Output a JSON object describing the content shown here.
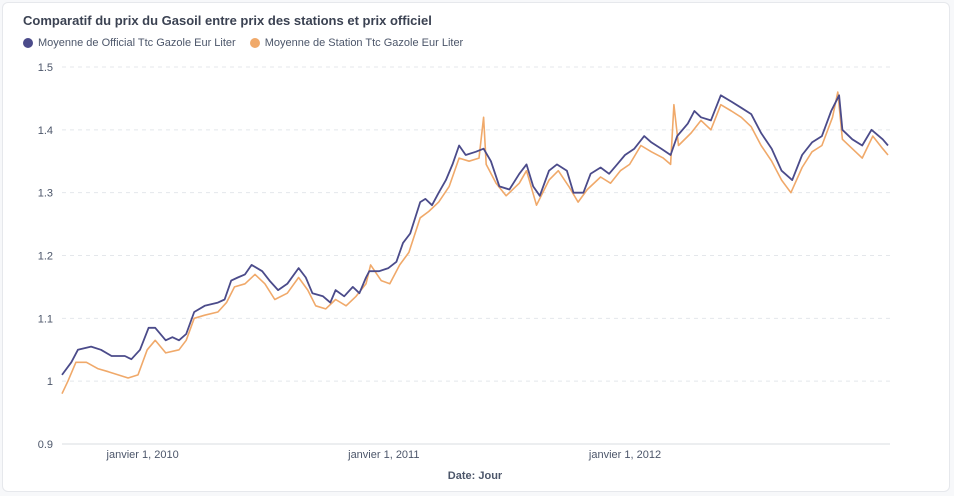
{
  "colors": {
    "official": "#4b4b8a",
    "station": "#f0a96a"
  },
  "chart_data": {
    "type": "line",
    "title": "Comparatif du prix du Gasoil entre prix des stations et prix officiel",
    "xlabel": "Date: Jour",
    "ylabel": "",
    "ylim": [
      0.9,
      1.5
    ],
    "y_ticks": [
      "0.9",
      "1",
      "1.1",
      "1.2",
      "1.3",
      "1.4",
      "1.5"
    ],
    "x_ticks": [
      {
        "date": "2010-01-01",
        "label": "janvier 1, 2010"
      },
      {
        "date": "2011-01-01",
        "label": "janvier 1, 2011"
      },
      {
        "date": "2012-01-01",
        "label": "janvier 1, 2012"
      }
    ],
    "grid": true,
    "legend_position": "top-left",
    "series": [
      {
        "name": "Moyenne de Official Ttc Gazole Eur Liter",
        "color": "#4b4b8a",
        "points": [
          [
            "2009-09-01",
            1.01
          ],
          [
            "2009-09-15",
            1.03
          ],
          [
            "2009-09-25",
            1.05
          ],
          [
            "2009-10-15",
            1.055
          ],
          [
            "2009-10-30",
            1.05
          ],
          [
            "2009-11-15",
            1.04
          ],
          [
            "2009-12-05",
            1.04
          ],
          [
            "2009-12-15",
            1.035
          ],
          [
            "2009-12-28",
            1.05
          ],
          [
            "2010-01-10",
            1.085
          ],
          [
            "2010-01-20",
            1.085
          ],
          [
            "2010-02-05",
            1.065
          ],
          [
            "2010-02-15",
            1.07
          ],
          [
            "2010-02-25",
            1.065
          ],
          [
            "2010-03-08",
            1.075
          ],
          [
            "2010-03-20",
            1.11
          ],
          [
            "2010-04-05",
            1.12
          ],
          [
            "2010-04-25",
            1.125
          ],
          [
            "2010-05-05",
            1.13
          ],
          [
            "2010-05-15",
            1.16
          ],
          [
            "2010-05-25",
            1.165
          ],
          [
            "2010-06-05",
            1.17
          ],
          [
            "2010-06-15",
            1.185
          ],
          [
            "2010-07-01",
            1.175
          ],
          [
            "2010-07-12",
            1.16
          ],
          [
            "2010-07-25",
            1.145
          ],
          [
            "2010-08-08",
            1.155
          ],
          [
            "2010-08-25",
            1.18
          ],
          [
            "2010-09-05",
            1.165
          ],
          [
            "2010-09-15",
            1.14
          ],
          [
            "2010-10-01",
            1.135
          ],
          [
            "2010-10-12",
            1.125
          ],
          [
            "2010-10-20",
            1.145
          ],
          [
            "2010-11-02",
            1.135
          ],
          [
            "2010-11-15",
            1.15
          ],
          [
            "2010-11-25",
            1.14
          ],
          [
            "2010-12-05",
            1.165
          ],
          [
            "2010-12-10",
            1.175
          ],
          [
            "2010-12-25",
            1.175
          ],
          [
            "2011-01-08",
            1.18
          ],
          [
            "2011-01-20",
            1.19
          ],
          [
            "2011-01-30",
            1.22
          ],
          [
            "2011-02-10",
            1.235
          ],
          [
            "2011-02-25",
            1.285
          ],
          [
            "2011-03-05",
            1.29
          ],
          [
            "2011-03-15",
            1.28
          ],
          [
            "2011-03-25",
            1.3
          ],
          [
            "2011-04-05",
            1.32
          ],
          [
            "2011-04-15",
            1.345
          ],
          [
            "2011-04-25",
            1.375
          ],
          [
            "2011-05-05",
            1.36
          ],
          [
            "2011-05-20",
            1.365
          ],
          [
            "2011-06-01",
            1.37
          ],
          [
            "2011-06-12",
            1.35
          ],
          [
            "2011-06-25",
            1.31
          ],
          [
            "2011-07-10",
            1.305
          ],
          [
            "2011-07-25",
            1.33
          ],
          [
            "2011-08-05",
            1.345
          ],
          [
            "2011-08-15",
            1.31
          ],
          [
            "2011-08-25",
            1.295
          ],
          [
            "2011-09-08",
            1.335
          ],
          [
            "2011-09-20",
            1.345
          ],
          [
            "2011-10-05",
            1.335
          ],
          [
            "2011-10-15",
            1.3
          ],
          [
            "2011-10-30",
            1.3
          ],
          [
            "2011-11-10",
            1.33
          ],
          [
            "2011-11-25",
            1.34
          ],
          [
            "2011-12-08",
            1.33
          ],
          [
            "2011-12-20",
            1.345
          ],
          [
            "2012-01-01",
            1.36
          ],
          [
            "2012-01-15",
            1.37
          ],
          [
            "2012-01-30",
            1.39
          ],
          [
            "2012-02-10",
            1.38
          ],
          [
            "2012-02-25",
            1.37
          ],
          [
            "2012-03-10",
            1.36
          ],
          [
            "2012-03-20",
            1.39
          ],
          [
            "2012-04-05",
            1.41
          ],
          [
            "2012-04-15",
            1.43
          ],
          [
            "2012-04-25",
            1.42
          ],
          [
            "2012-05-10",
            1.415
          ],
          [
            "2012-05-25",
            1.455
          ],
          [
            "2012-06-10",
            1.445
          ],
          [
            "2012-06-25",
            1.435
          ],
          [
            "2012-07-10",
            1.425
          ],
          [
            "2012-07-25",
            1.395
          ],
          [
            "2012-08-10",
            1.37
          ],
          [
            "2012-08-25",
            1.335
          ],
          [
            "2012-09-10",
            1.32
          ],
          [
            "2012-09-25",
            1.36
          ],
          [
            "2012-10-10",
            1.38
          ],
          [
            "2012-10-25",
            1.39
          ],
          [
            "2012-11-08",
            1.43
          ],
          [
            "2012-11-20",
            1.455
          ],
          [
            "2012-11-25",
            1.4
          ],
          [
            "2012-12-10",
            1.385
          ],
          [
            "2012-12-25",
            1.375
          ],
          [
            "2013-01-08",
            1.4
          ],
          [
            "2013-01-25",
            1.385
          ],
          [
            "2013-02-02",
            1.375
          ]
        ]
      },
      {
        "name": "Moyenne de Station Ttc Gazole Eur Liter",
        "color": "#f0a96a",
        "points": [
          [
            "2009-09-01",
            0.98
          ],
          [
            "2009-09-10",
            1.0
          ],
          [
            "2009-09-22",
            1.03
          ],
          [
            "2009-10-08",
            1.03
          ],
          [
            "2009-10-25",
            1.02
          ],
          [
            "2009-11-10",
            1.015
          ],
          [
            "2009-11-25",
            1.01
          ],
          [
            "2009-12-10",
            1.005
          ],
          [
            "2009-12-25",
            1.01
          ],
          [
            "2010-01-08",
            1.05
          ],
          [
            "2010-01-20",
            1.065
          ],
          [
            "2010-02-05",
            1.045
          ],
          [
            "2010-02-25",
            1.05
          ],
          [
            "2010-03-08",
            1.065
          ],
          [
            "2010-03-20",
            1.1
          ],
          [
            "2010-04-05",
            1.105
          ],
          [
            "2010-04-25",
            1.11
          ],
          [
            "2010-05-08",
            1.125
          ],
          [
            "2010-05-20",
            1.15
          ],
          [
            "2010-06-05",
            1.155
          ],
          [
            "2010-06-20",
            1.17
          ],
          [
            "2010-07-05",
            1.155
          ],
          [
            "2010-07-20",
            1.13
          ],
          [
            "2010-08-08",
            1.14
          ],
          [
            "2010-08-25",
            1.165
          ],
          [
            "2010-09-08",
            1.145
          ],
          [
            "2010-09-20",
            1.12
          ],
          [
            "2010-10-05",
            1.115
          ],
          [
            "2010-10-20",
            1.13
          ],
          [
            "2010-11-05",
            1.12
          ],
          [
            "2010-11-20",
            1.135
          ],
          [
            "2010-12-05",
            1.155
          ],
          [
            "2010-12-12",
            1.185
          ],
          [
            "2010-12-28",
            1.16
          ],
          [
            "2011-01-10",
            1.155
          ],
          [
            "2011-01-25",
            1.185
          ],
          [
            "2011-02-08",
            1.205
          ],
          [
            "2011-02-25",
            1.26
          ],
          [
            "2011-03-10",
            1.27
          ],
          [
            "2011-03-25",
            1.285
          ],
          [
            "2011-04-10",
            1.31
          ],
          [
            "2011-04-25",
            1.355
          ],
          [
            "2011-05-10",
            1.35
          ],
          [
            "2011-05-25",
            1.355
          ],
          [
            "2011-06-01",
            1.42
          ],
          [
            "2011-06-05",
            1.345
          ],
          [
            "2011-06-20",
            1.315
          ],
          [
            "2011-07-05",
            1.295
          ],
          [
            "2011-07-25",
            1.315
          ],
          [
            "2011-08-05",
            1.335
          ],
          [
            "2011-08-20",
            1.28
          ],
          [
            "2011-09-08",
            1.32
          ],
          [
            "2011-09-22",
            1.335
          ],
          [
            "2011-10-08",
            1.31
          ],
          [
            "2011-10-22",
            1.285
          ],
          [
            "2011-11-05",
            1.305
          ],
          [
            "2011-11-25",
            1.325
          ],
          [
            "2011-12-10",
            1.315
          ],
          [
            "2011-12-25",
            1.335
          ],
          [
            "2012-01-08",
            1.345
          ],
          [
            "2012-01-25",
            1.375
          ],
          [
            "2012-02-10",
            1.365
          ],
          [
            "2012-02-28",
            1.355
          ],
          [
            "2012-03-10",
            1.345
          ],
          [
            "2012-03-15",
            1.44
          ],
          [
            "2012-03-22",
            1.375
          ],
          [
            "2012-04-10",
            1.395
          ],
          [
            "2012-04-25",
            1.415
          ],
          [
            "2012-05-10",
            1.4
          ],
          [
            "2012-05-25",
            1.44
          ],
          [
            "2012-06-10",
            1.43
          ],
          [
            "2012-06-25",
            1.42
          ],
          [
            "2012-07-10",
            1.405
          ],
          [
            "2012-07-25",
            1.375
          ],
          [
            "2012-08-10",
            1.35
          ],
          [
            "2012-08-25",
            1.32
          ],
          [
            "2012-09-08",
            1.3
          ],
          [
            "2012-09-25",
            1.34
          ],
          [
            "2012-10-10",
            1.365
          ],
          [
            "2012-10-25",
            1.375
          ],
          [
            "2012-11-10",
            1.42
          ],
          [
            "2012-11-18",
            1.46
          ],
          [
            "2012-11-25",
            1.385
          ],
          [
            "2012-12-10",
            1.37
          ],
          [
            "2012-12-25",
            1.355
          ],
          [
            "2013-01-10",
            1.39
          ],
          [
            "2013-01-25",
            1.37
          ],
          [
            "2013-02-02",
            1.36
          ]
        ]
      }
    ]
  }
}
